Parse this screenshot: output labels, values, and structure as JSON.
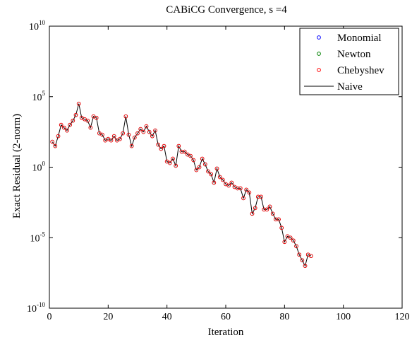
{
  "chart_data": {
    "type": "scatter",
    "title": "CABiCG Convergence, s =4",
    "xlabel": "Iteration",
    "ylabel": "Exact Residual (2-norm)",
    "xlim": [
      0,
      120
    ],
    "ylim": [
      1e-10,
      10000000000.0
    ],
    "yscale": "log",
    "x_ticks": [
      "0",
      "20",
      "40",
      "60",
      "80",
      "100",
      "120"
    ],
    "y_ticks": [
      {
        "base": "10",
        "exp": "10",
        "value": 10000000000.0
      },
      {
        "base": "10",
        "exp": "5",
        "value": 100000.0
      },
      {
        "base": "10",
        "exp": "0",
        "value": 1
      },
      {
        "base": "10",
        "exp": "-5",
        "value": 1e-05
      },
      {
        "base": "10",
        "exp": "-10",
        "value": 1e-10
      }
    ],
    "grid": false,
    "legend_position": "top-right",
    "series": [
      {
        "name": "Monomial",
        "style": "markers",
        "color": "#0000ff"
      },
      {
        "name": "Newton",
        "style": "markers",
        "color": "#008000"
      },
      {
        "name": "Chebyshev",
        "style": "markers",
        "color": "#ff0000"
      },
      {
        "name": "Naive",
        "style": "line",
        "color": "#000000"
      }
    ],
    "x": [
      1,
      2,
      3,
      4,
      5,
      6,
      7,
      8,
      9,
      10,
      11,
      12,
      13,
      14,
      15,
      16,
      17,
      18,
      19,
      20,
      21,
      22,
      23,
      24,
      25,
      26,
      27,
      28,
      29,
      30,
      31,
      32,
      33,
      34,
      35,
      36,
      37,
      38,
      39,
      40,
      41,
      42,
      43,
      44,
      45,
      46,
      47,
      48,
      49,
      50,
      51,
      52,
      53,
      54,
      55,
      56,
      57,
      58,
      59,
      60,
      61,
      62,
      63,
      64,
      65,
      66,
      67,
      68,
      69,
      70,
      71,
      72,
      73,
      74,
      75,
      76,
      77,
      78,
      79,
      80,
      81,
      82,
      83,
      84,
      85,
      86,
      87,
      88,
      89
    ],
    "y_log10": [
      1.8,
      1.5,
      2.2,
      3.0,
      2.8,
      2.6,
      3.0,
      3.3,
      3.7,
      4.5,
      3.5,
      3.4,
      3.3,
      2.8,
      3.6,
      3.5,
      2.4,
      2.3,
      1.9,
      2.0,
      1.9,
      2.2,
      1.9,
      2.0,
      2.4,
      3.6,
      2.3,
      1.5,
      2.1,
      2.4,
      2.7,
      2.5,
      2.9,
      2.5,
      2.2,
      2.6,
      1.6,
      1.3,
      1.5,
      0.4,
      0.3,
      0.6,
      0.1,
      1.5,
      1.1,
      1.1,
      0.9,
      0.8,
      0.5,
      -0.2,
      0.0,
      0.6,
      0.2,
      -0.3,
      -0.5,
      -1.1,
      -0.1,
      -0.7,
      -0.9,
      -1.2,
      -1.3,
      -1.1,
      -1.4,
      -1.5,
      -1.5,
      -2.2,
      -1.6,
      -1.8,
      -3.3,
      -2.9,
      -2.1,
      -2.1,
      -3.0,
      -3.0,
      -2.8,
      -3.3,
      -3.7,
      -3.7,
      -4.3,
      -5.3,
      -4.9,
      -5.0,
      -5.2,
      -5.6,
      -6.2,
      -6.6,
      -7.0,
      -6.2,
      -6.3
    ]
  }
}
